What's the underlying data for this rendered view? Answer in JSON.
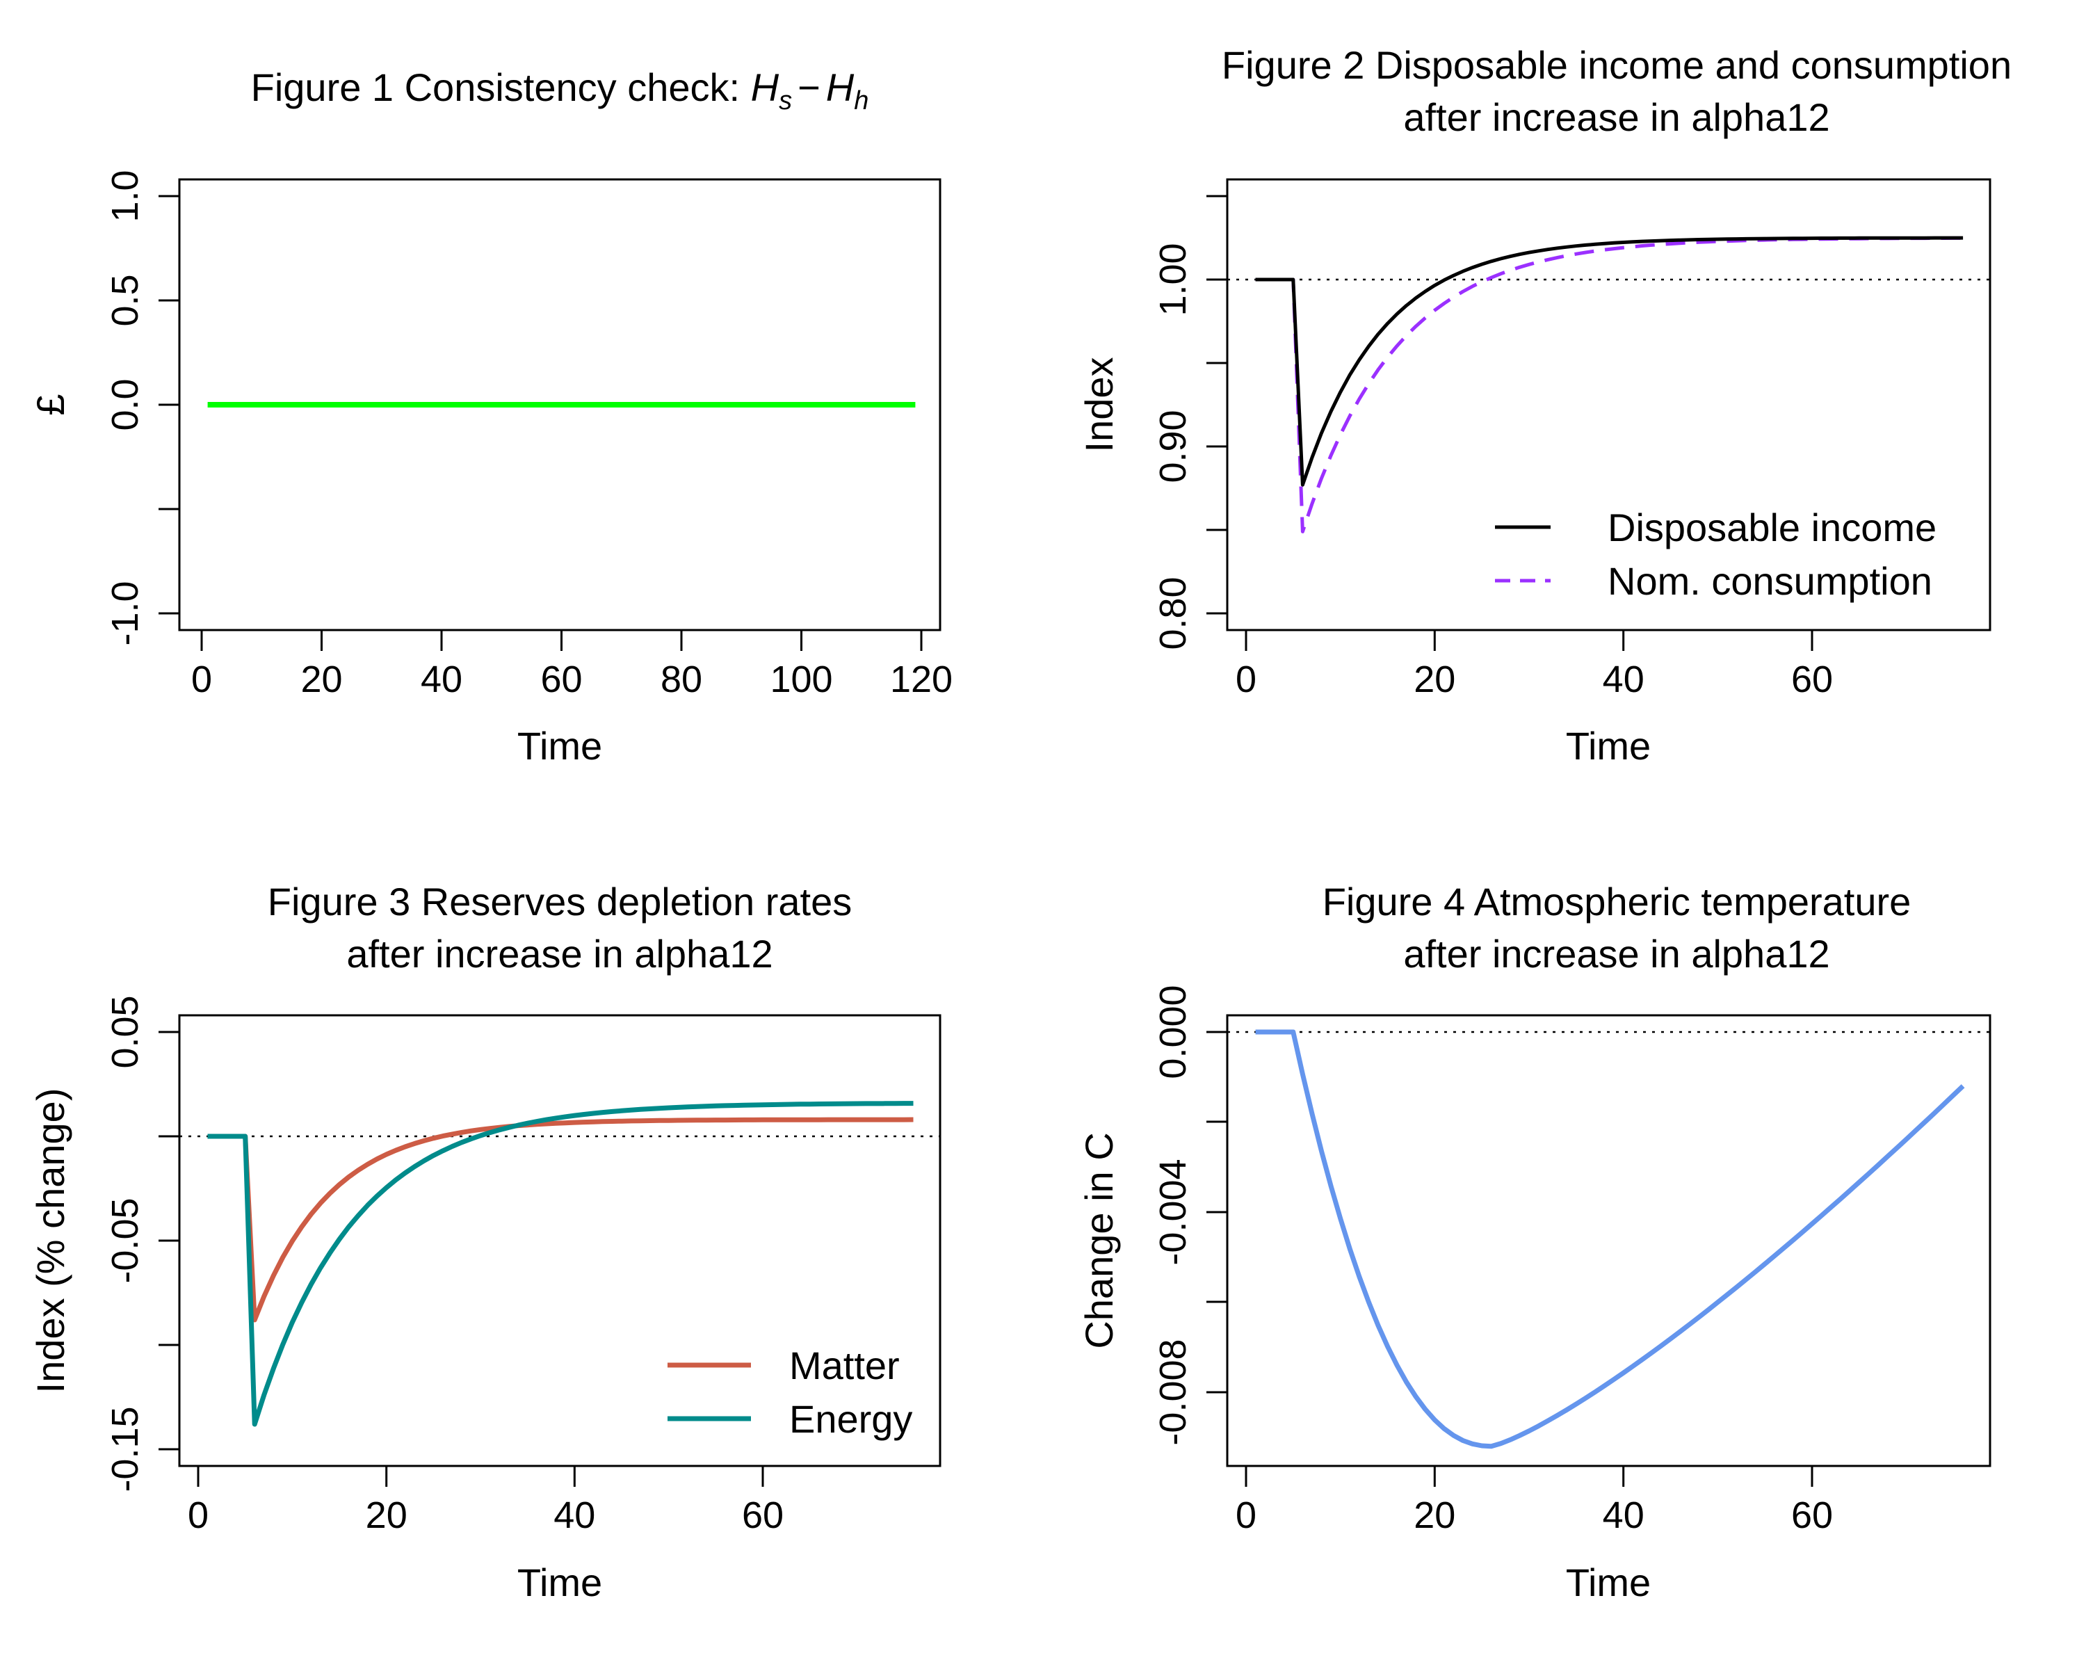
{
  "panels": {
    "p1": {
      "title_prefix": "Figure 1  Consistency check: ",
      "title_math": {
        "H1": "H",
        "s": "s",
        "minus": "−",
        "H2": "H",
        "h": "h"
      },
      "xlabel": "Time",
      "ylabel": "£",
      "x_ticks": [
        "0",
        "20",
        "40",
        "60",
        "80",
        "100",
        "120"
      ],
      "y_ticks": [
        "-1.0",
        "0.0",
        "0.5",
        "1.0"
      ]
    },
    "p2": {
      "title_line1": "Figure 2  Disposable income and consumption",
      "title_line2": "after increase in alpha12",
      "xlabel": "Time",
      "ylabel": "Index",
      "x_ticks": [
        "0",
        "20",
        "40",
        "60"
      ],
      "y_ticks": [
        "0.80",
        "0.90",
        "1.00"
      ],
      "legend": [
        "Disposable income",
        "Nom. consumption"
      ]
    },
    "p3": {
      "title_line1": "Figure 3  Reserves depletion rates",
      "title_line2": "after increase in alpha12",
      "xlabel": "Time",
      "ylabel": "Index (% change)",
      "x_ticks": [
        "0",
        "20",
        "40",
        "60"
      ],
      "y_ticks": [
        "-0.15",
        "-0.05",
        "0.05"
      ],
      "legend": [
        "Matter",
        "Energy"
      ]
    },
    "p4": {
      "title_line1": "Figure 4  Atmospheric temperature",
      "title_line2": "after increase in alpha12",
      "xlabel": "Time",
      "ylabel": "Change in C",
      "x_ticks": [
        "0",
        "20",
        "40",
        "60"
      ],
      "y_ticks": [
        "-0.008",
        "-0.004",
        "0.000"
      ]
    }
  },
  "chart_data": [
    {
      "type": "line",
      "title": "Figure 1  Consistency check: Hs − Hh",
      "xlabel": "Time",
      "ylabel": "£",
      "xlim": [
        1,
        120
      ],
      "ylim": [
        -1,
        1
      ],
      "series": [
        {
          "color": "#00ff00",
          "style": "solid",
          "shape": "constant",
          "x_start": 1,
          "x_end": 119,
          "value": 0
        }
      ]
    },
    {
      "type": "line",
      "title": "Figure 2  Disposable income and consumption after increase in alpha12",
      "xlabel": "Time",
      "ylabel": "Index",
      "xlim": [
        1,
        76
      ],
      "ylim": [
        0.8,
        1.05
      ],
      "reference_line": 1.0,
      "legend_position": "bottom-right",
      "series": [
        {
          "name": "Disposable income",
          "color": "#000000",
          "style": "solid",
          "shape": "shock",
          "x_start": 1,
          "x_shock": 5,
          "x_trough": 6,
          "x_end": 76,
          "baseline": 1.0,
          "trough": 0.877,
          "final": 1.025,
          "recovery_tau": 8.5
        },
        {
          "name": "Nom. consumption",
          "color": "#9b30ff",
          "style": "dashed",
          "shape": "shock",
          "x_start": 1,
          "x_shock": 5,
          "x_trough": 6,
          "x_end": 76,
          "baseline": 1.0,
          "trough": 0.849,
          "final": 1.025,
          "recovery_tau": 10
        }
      ]
    },
    {
      "type": "line",
      "title": "Figure 3  Reserves depletion rates after increase in alpha12",
      "xlabel": "Time",
      "ylabel": "Index (% change)",
      "xlim": [
        1,
        76
      ],
      "ylim": [
        -0.15,
        0.05
      ],
      "reference_line": 0,
      "legend_position": "bottom-right",
      "series": [
        {
          "name": "Matter",
          "color": "#cd5c45",
          "style": "solid",
          "shape": "shock",
          "x_start": 1,
          "x_shock": 5,
          "x_trough": 6,
          "x_end": 76,
          "baseline": 0,
          "trough": -0.088,
          "final": 0.008,
          "recovery_tau": 8
        },
        {
          "name": "Energy",
          "color": "#008b8b",
          "style": "solid",
          "shape": "shock",
          "x_start": 1,
          "x_shock": 5,
          "x_trough": 6,
          "x_end": 76,
          "baseline": 0,
          "trough": -0.138,
          "final": 0.016,
          "recovery_tau": 10.5
        }
      ]
    },
    {
      "type": "line",
      "title": "Figure 4  Atmospheric temperature after increase in alpha12",
      "xlabel": "Time",
      "ylabel": "Change in C",
      "xlim": [
        1,
        76
      ],
      "ylim": [
        -0.0093,
        0.0004
      ],
      "reference_line": 0,
      "series": [
        {
          "color": "#6495ed",
          "style": "solid",
          "shape": "dip",
          "x_start": 1,
          "x_shock": 5,
          "x_min": 26,
          "x_end": 76,
          "baseline": 0,
          "min": -0.0092,
          "final": -0.0012
        }
      ]
    }
  ]
}
